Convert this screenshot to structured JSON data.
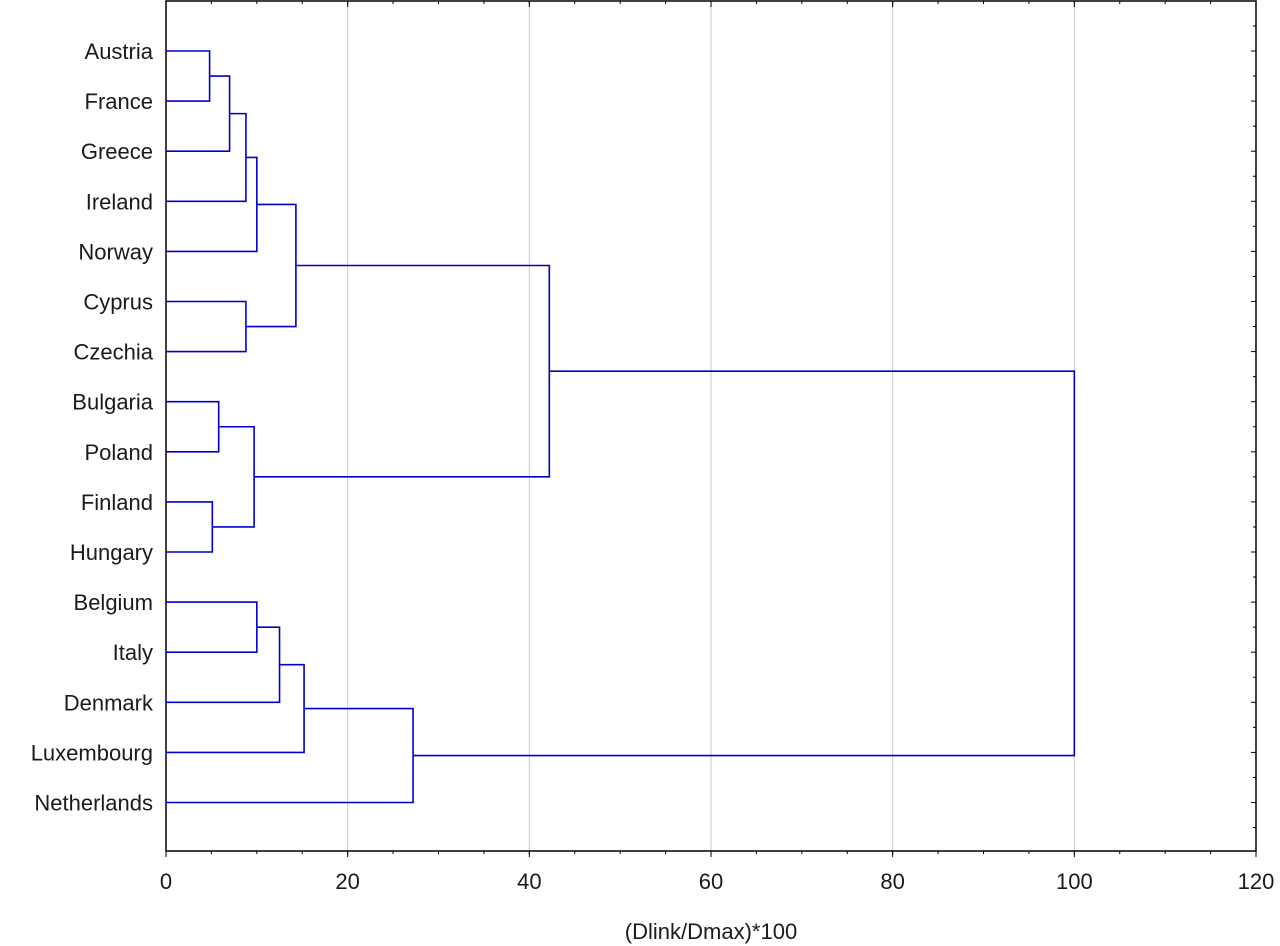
{
  "chart_data": {
    "type": "dendrogram",
    "orientation": "horizontal",
    "xlabel": "(Dlink/Dmax)*100",
    "xlim": [
      0,
      120
    ],
    "x_ticks": [
      "0",
      "20",
      "40",
      "60",
      "80",
      "100",
      "120"
    ],
    "x_tick_values": [
      0,
      20,
      40,
      60,
      80,
      100,
      120
    ],
    "grid": "vertical",
    "line_color": "#0000cc",
    "leaves": [
      "Austria",
      "France",
      "Greece",
      "Ireland",
      "Norway",
      "Cyprus",
      "Czechia",
      "Bulgaria",
      "Poland",
      "Finland",
      "Hungary",
      "Belgium",
      "Italy",
      "Denmark",
      "Luxembourg",
      "Netherlands"
    ],
    "merges": [
      {
        "a": "Austria",
        "b": "France",
        "height": 4.8,
        "id": "c1"
      },
      {
        "a": "c1",
        "b": "Greece",
        "height": 7.0,
        "id": "c2"
      },
      {
        "a": "c2",
        "b": "Ireland",
        "height": 8.8,
        "id": "c3"
      },
      {
        "a": "c3",
        "b": "Norway",
        "height": 10.0,
        "id": "c4"
      },
      {
        "a": "Cyprus",
        "b": "Czechia",
        "height": 8.8,
        "id": "c5"
      },
      {
        "a": "c4",
        "b": "c5",
        "height": 14.3,
        "id": "c6"
      },
      {
        "a": "Bulgaria",
        "b": "Poland",
        "height": 5.8,
        "id": "c7"
      },
      {
        "a": "Finland",
        "b": "Hungary",
        "height": 5.1,
        "id": "c8"
      },
      {
        "a": "c7",
        "b": "c8",
        "height": 9.7,
        "id": "c9"
      },
      {
        "a": "c6",
        "b": "c9",
        "height": 42.2,
        "id": "c10"
      },
      {
        "a": "Belgium",
        "b": "Italy",
        "height": 10.0,
        "id": "c11"
      },
      {
        "a": "c11",
        "b": "Denmark",
        "height": 12.5,
        "id": "c12"
      },
      {
        "a": "c12",
        "b": "Luxembourg",
        "height": 15.2,
        "id": "c13"
      },
      {
        "a": "c13",
        "b": "Netherlands",
        "height": 27.2,
        "id": "c14"
      },
      {
        "a": "c10",
        "b": "c14",
        "height": 100.0,
        "id": "c15"
      }
    ]
  }
}
